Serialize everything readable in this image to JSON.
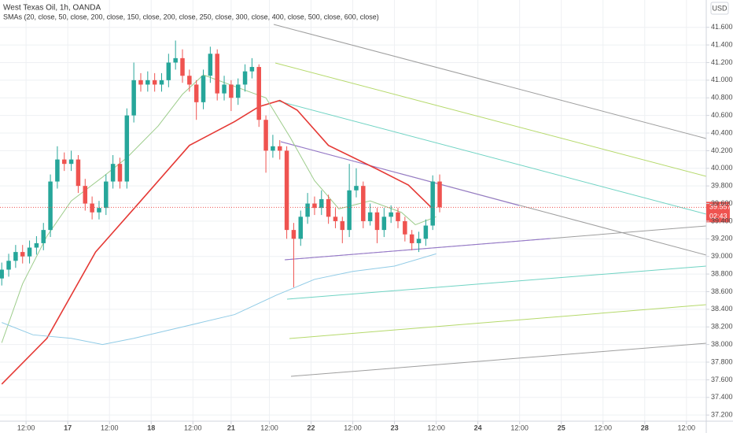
{
  "chart_data": {
    "type": "candlestick",
    "title": "West Texas Oil, 1h, OANDA",
    "subtitle": "SMAs (20, close, 50, close, 200, close, 150, close, 200, close, 250, close, 300, close, 400, close, 500, close, 600, close)",
    "currency": "USD",
    "last_price_label": "39.557",
    "countdown": "02:43",
    "up_color": "#26a69a",
    "down_color": "#ef5350",
    "grid": true,
    "x": [
      -19,
      -17,
      -15,
      -13,
      -11,
      -9,
      -7,
      -5,
      -3,
      -1,
      1,
      3,
      5,
      7,
      9,
      11,
      13,
      15,
      17,
      19,
      21,
      23,
      25,
      27,
      29,
      31,
      33,
      35,
      37,
      39,
      41,
      43,
      45,
      47,
      49,
      51,
      53,
      55,
      57,
      59,
      61,
      63,
      65,
      67,
      69,
      71,
      73,
      75,
      77,
      79,
      81,
      83,
      85,
      87,
      89,
      91,
      93,
      95,
      97,
      99,
      101,
      103,
      105,
      107
    ],
    "open": [
      38.75,
      38.85,
      38.95,
      39.05,
      39.0,
      39.1,
      39.15,
      39.3,
      39.85,
      40.1,
      40.05,
      40.1,
      39.8,
      39.6,
      39.5,
      39.55,
      39.85,
      40.05,
      39.85,
      40.6,
      41.0,
      40.95,
      41.0,
      40.95,
      41.0,
      41.2,
      41.25,
      41.05,
      40.95,
      40.75,
      41.05,
      41.3,
      40.85,
      40.95,
      40.8,
      40.95,
      41.1,
      41.15,
      40.55,
      40.2,
      40.25,
      40.2,
      39.3,
      39.2,
      39.45,
      39.6,
      39.55,
      39.65,
      39.45,
      39.4,
      39.3,
      39.75,
      39.8,
      39.4,
      39.5,
      39.3,
      39.45,
      39.5,
      39.4,
      39.25,
      39.15,
      39.2,
      39.35,
      39.85
    ],
    "high": [
      38.93,
      39.03,
      39.13,
      39.13,
      39.18,
      39.23,
      39.38,
      39.93,
      40.25,
      40.18,
      40.2,
      40.15,
      39.88,
      39.68,
      39.63,
      39.93,
      40.15,
      40.12,
      40.68,
      41.2,
      41.08,
      41.1,
      41.08,
      41.08,
      41.3,
      41.45,
      41.35,
      41.12,
      41.0,
      41.12,
      41.38,
      41.35,
      41.05,
      41.0,
      41.02,
      41.18,
      41.25,
      41.18,
      40.6,
      40.38,
      40.32,
      40.25,
      39.38,
      39.52,
      39.72,
      39.68,
      39.75,
      39.7,
      39.55,
      39.45,
      40.05,
      40.0,
      39.85,
      39.6,
      39.55,
      39.55,
      39.58,
      39.55,
      39.45,
      39.3,
      39.28,
      39.42,
      39.92,
      39.93
    ],
    "low": [
      38.67,
      38.77,
      38.87,
      38.92,
      38.92,
      39.02,
      39.07,
      39.22,
      39.77,
      39.97,
      39.97,
      39.72,
      39.52,
      39.42,
      39.42,
      39.47,
      39.77,
      39.77,
      39.77,
      40.52,
      40.87,
      40.87,
      40.87,
      40.87,
      40.92,
      41.12,
      40.97,
      40.87,
      40.55,
      40.67,
      40.97,
      40.77,
      40.77,
      40.65,
      40.72,
      40.87,
      41.02,
      40.47,
      39.95,
      40.12,
      40.1,
      39.2,
      38.65,
      39.12,
      39.37,
      39.47,
      39.47,
      39.37,
      39.32,
      39.15,
      39.22,
      39.67,
      39.32,
      39.35,
      39.15,
      39.22,
      39.38,
      39.32,
      39.17,
      39.07,
      39.05,
      39.12,
      39.3,
      39.5
    ],
    "close": [
      38.85,
      38.95,
      39.05,
      39.0,
      39.1,
      39.15,
      39.3,
      39.85,
      40.1,
      40.05,
      40.1,
      39.8,
      39.6,
      39.5,
      39.55,
      39.85,
      40.05,
      39.85,
      40.6,
      41.0,
      40.95,
      41.0,
      40.95,
      41.0,
      41.2,
      41.25,
      41.05,
      40.95,
      40.75,
      41.05,
      41.3,
      40.85,
      40.95,
      40.8,
      40.95,
      41.1,
      41.15,
      40.55,
      40.2,
      40.25,
      40.2,
      39.3,
      39.2,
      39.45,
      39.6,
      39.55,
      39.65,
      39.45,
      39.4,
      39.3,
      39.75,
      39.8,
      39.4,
      39.5,
      39.3,
      39.45,
      39.5,
      39.4,
      39.25,
      39.15,
      39.2,
      39.35,
      39.85,
      39.557
    ],
    "lines": [
      {
        "color": "#e53935",
        "x": [
          -19,
          -6,
          8,
          21,
          35,
          48,
          55,
          61,
          66,
          75,
          89,
          98,
          105
        ],
        "values": [
          37.55,
          38.07,
          39.05,
          39.63,
          40.26,
          40.53,
          40.7,
          40.77,
          40.66,
          40.26,
          39.99,
          39.81,
          39.54
        ]
      },
      {
        "color": "#9ccc8a",
        "x": [
          -19,
          -13,
          -6,
          1,
          10,
          17,
          26,
          33,
          39,
          48,
          57,
          64,
          71,
          78,
          87,
          96,
          100,
          106
        ],
        "values": [
          38.02,
          38.69,
          39.23,
          39.63,
          39.9,
          40.12,
          40.48,
          40.84,
          41.06,
          40.93,
          40.8,
          40.35,
          39.86,
          39.54,
          39.63,
          39.5,
          39.36,
          39.45
        ]
      },
      {
        "color": "#90cbe6",
        "x": [
          -19,
          -10,
          1,
          10,
          19,
          33,
          48,
          60,
          71,
          82,
          94,
          106
        ],
        "values": [
          38.25,
          38.11,
          38.07,
          38.0,
          38.07,
          38.2,
          38.34,
          38.56,
          38.74,
          38.83,
          38.89,
          39.03
        ]
      }
    ],
    "xlim": [
      -19.5,
      183.7
    ],
    "xticks": [
      {
        "value": -12,
        "label": "12:00"
      },
      17,
      {
        "value": 12,
        "label": "12:00"
      },
      18,
      {
        "value": 36,
        "label": "12:00"
      },
      21,
      {
        "value": 58,
        "label": "12:00"
      },
      22,
      {
        "value": 82,
        "label": "12:00"
      },
      23,
      {
        "value": 106,
        "label": "12:00"
      },
      24,
      {
        "value": 130,
        "label": "12:00"
      },
      25,
      {
        "value": 154,
        "label": "12:00"
      },
      28,
      {
        "value": 178,
        "label": "12:00"
      }
    ],
    "xtick_positions": [
      -12,
      0,
      12,
      24,
      36,
      47,
      58,
      70,
      82,
      94,
      106,
      118,
      130,
      142,
      154,
      166,
      178
    ],
    "ylim": [
      37.13,
      41.91
    ],
    "yticks": [
      {
        "value": 37.2,
        "label": "37.200"
      },
      {
        "value": 37.4,
        "label": "37.400"
      },
      {
        "value": 37.6,
        "label": "37.600"
      },
      {
        "value": 37.8,
        "label": "37.800"
      },
      {
        "value": 38.0,
        "label": "38.000"
      },
      {
        "value": 38.2,
        "label": "38.200"
      },
      {
        "value": 38.4,
        "label": "38.400"
      },
      {
        "value": 38.6,
        "label": "38.600"
      },
      {
        "value": 38.8,
        "label": "38.800"
      },
      {
        "value": 39.0,
        "label": "39.000"
      },
      {
        "value": 39.2,
        "label": "39.200"
      },
      {
        "value": 39.4,
        "label": "39.400"
      },
      {
        "value": 39.6,
        "label": "39.600"
      },
      {
        "value": 39.8,
        "label": "39.800"
      },
      {
        "value": 40.0,
        "label": "40.000"
      },
      {
        "value": 40.2,
        "label": "40.200"
      },
      {
        "value": 40.4,
        "label": "40.400"
      },
      {
        "value": 40.6,
        "label": "40.600"
      },
      {
        "value": 40.8,
        "label": "40.800"
      },
      {
        "value": 41.0,
        "label": "41.000"
      },
      {
        "value": 41.2,
        "label": "41.200"
      },
      {
        "value": 41.4,
        "label": "41.400"
      },
      {
        "value": 41.6,
        "label": "41.600"
      }
    ]
  }
}
